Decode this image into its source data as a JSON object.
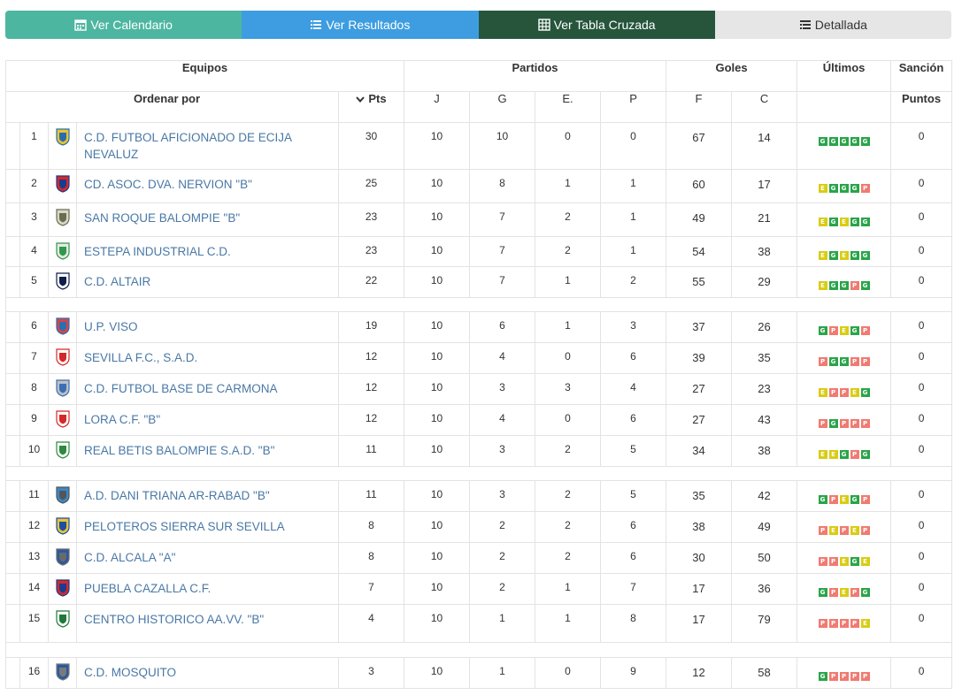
{
  "tabs": [
    {
      "label": "Ver Calendario",
      "icon": "calendar-icon"
    },
    {
      "label": "Ver Resultados",
      "icon": "list-icon"
    },
    {
      "label": "Ver Tabla Cruzada",
      "icon": "grid-table-icon"
    },
    {
      "label": "Detallada",
      "icon": "detail-list-icon"
    }
  ],
  "header": {
    "equipos": "Equipos",
    "partidos": "Partidos",
    "goles": "Goles",
    "ultimos": "Últimos",
    "sancion": "Sanción",
    "ordenar": "Ordenar por",
    "pts": "Pts",
    "j": "J",
    "g": "G",
    "e": "E.",
    "p": "P",
    "f": "F",
    "c": "C",
    "puntos": "Puntos"
  },
  "colors": {
    "G": "#2aa44a",
    "E": "#d9cc14",
    "P": "#ef7b72"
  },
  "teams": [
    {
      "pos": "1",
      "name": "C.D. FUTBOL AFICIONADO DE ECIJA NEVALUZ",
      "pts": "30",
      "j": "10",
      "g": "10",
      "e": "0",
      "p": "0",
      "f": "67",
      "c": "14",
      "last": [
        "G",
        "G",
        "G",
        "G",
        "G"
      ],
      "sancion": "0"
    },
    {
      "pos": "2",
      "name": "CD. ASOC. DVA. NERVION \"B\"",
      "pts": "25",
      "j": "10",
      "g": "8",
      "e": "1",
      "p": "1",
      "f": "60",
      "c": "17",
      "last": [
        "E",
        "G",
        "G",
        "G",
        "P"
      ],
      "sancion": "0"
    },
    {
      "pos": "3",
      "name": "SAN ROQUE BALOMPIE \"B\"",
      "pts": "23",
      "j": "10",
      "g": "7",
      "e": "2",
      "p": "1",
      "f": "49",
      "c": "21",
      "last": [
        "E",
        "G",
        "E",
        "G",
        "G"
      ],
      "sancion": "0"
    },
    {
      "pos": "4",
      "name": "ESTEPA INDUSTRIAL C.D.",
      "pts": "23",
      "j": "10",
      "g": "7",
      "e": "2",
      "p": "1",
      "f": "54",
      "c": "38",
      "last": [
        "E",
        "G",
        "E",
        "G",
        "G"
      ],
      "sancion": "0"
    },
    {
      "pos": "5",
      "name": "C.D. ALTAIR",
      "pts": "22",
      "j": "10",
      "g": "7",
      "e": "1",
      "p": "2",
      "f": "55",
      "c": "29",
      "last": [
        "E",
        "G",
        "G",
        "P",
        "G"
      ],
      "sancion": "0"
    },
    {
      "pos": "6",
      "name": "U.P. VISO",
      "pts": "19",
      "j": "10",
      "g": "6",
      "e": "1",
      "p": "3",
      "f": "37",
      "c": "26",
      "last": [
        "G",
        "P",
        "E",
        "G",
        "P"
      ],
      "sancion": "0"
    },
    {
      "pos": "7",
      "name": "SEVILLA F.C., S.A.D.",
      "pts": "12",
      "j": "10",
      "g": "4",
      "e": "0",
      "p": "6",
      "f": "39",
      "c": "35",
      "last": [
        "P",
        "G",
        "G",
        "P",
        "P"
      ],
      "sancion": "0"
    },
    {
      "pos": "8",
      "name": "C.D. FUTBOL BASE DE CARMONA",
      "pts": "12",
      "j": "10",
      "g": "3",
      "e": "3",
      "p": "4",
      "f": "27",
      "c": "23",
      "last": [
        "E",
        "P",
        "P",
        "E",
        "G"
      ],
      "sancion": "0"
    },
    {
      "pos": "9",
      "name": "LORA C.F. \"B\"",
      "pts": "12",
      "j": "10",
      "g": "4",
      "e": "0",
      "p": "6",
      "f": "27",
      "c": "43",
      "last": [
        "P",
        "G",
        "P",
        "P",
        "P"
      ],
      "sancion": "0"
    },
    {
      "pos": "10",
      "name": "REAL BETIS BALOMPIE S.A.D. \"B\"",
      "pts": "11",
      "j": "10",
      "g": "3",
      "e": "2",
      "p": "5",
      "f": "34",
      "c": "38",
      "last": [
        "E",
        "E",
        "G",
        "P",
        "G"
      ],
      "sancion": "0"
    },
    {
      "pos": "11",
      "name": "A.D. DANI TRIANA AR-RABAD \"B\"",
      "pts": "11",
      "j": "10",
      "g": "3",
      "e": "2",
      "p": "5",
      "f": "35",
      "c": "42",
      "last": [
        "G",
        "P",
        "E",
        "G",
        "P"
      ],
      "sancion": "0"
    },
    {
      "pos": "12",
      "name": "PELOTEROS SIERRA SUR SEVILLA",
      "pts": "8",
      "j": "10",
      "g": "2",
      "e": "2",
      "p": "6",
      "f": "38",
      "c": "49",
      "last": [
        "P",
        "E",
        "P",
        "E",
        "P"
      ],
      "sancion": "0"
    },
    {
      "pos": "13",
      "name": "C.D. ALCALA \"A\"",
      "pts": "8",
      "j": "10",
      "g": "2",
      "e": "2",
      "p": "6",
      "f": "30",
      "c": "50",
      "last": [
        "P",
        "P",
        "E",
        "G",
        "E"
      ],
      "sancion": "0"
    },
    {
      "pos": "14",
      "name": "PUEBLA CAZALLA C.F.",
      "pts": "7",
      "j": "10",
      "g": "2",
      "e": "1",
      "p": "7",
      "f": "17",
      "c": "36",
      "last": [
        "G",
        "P",
        "E",
        "P",
        "G"
      ],
      "sancion": "0"
    },
    {
      "pos": "15",
      "name": "CENTRO HISTORICO AA.VV. \"B\"",
      "pts": "4",
      "j": "10",
      "g": "1",
      "e": "1",
      "p": "8",
      "f": "17",
      "c": "79",
      "last": [
        "P",
        "P",
        "P",
        "P",
        "E"
      ],
      "sancion": "0"
    },
    {
      "pos": "16",
      "name": "C.D. MOSQUITO",
      "pts": "3",
      "j": "10",
      "g": "1",
      "e": "0",
      "p": "9",
      "f": "12",
      "c": "58",
      "last": [
        "G",
        "P",
        "P",
        "P",
        "P"
      ],
      "sancion": "0"
    }
  ]
}
